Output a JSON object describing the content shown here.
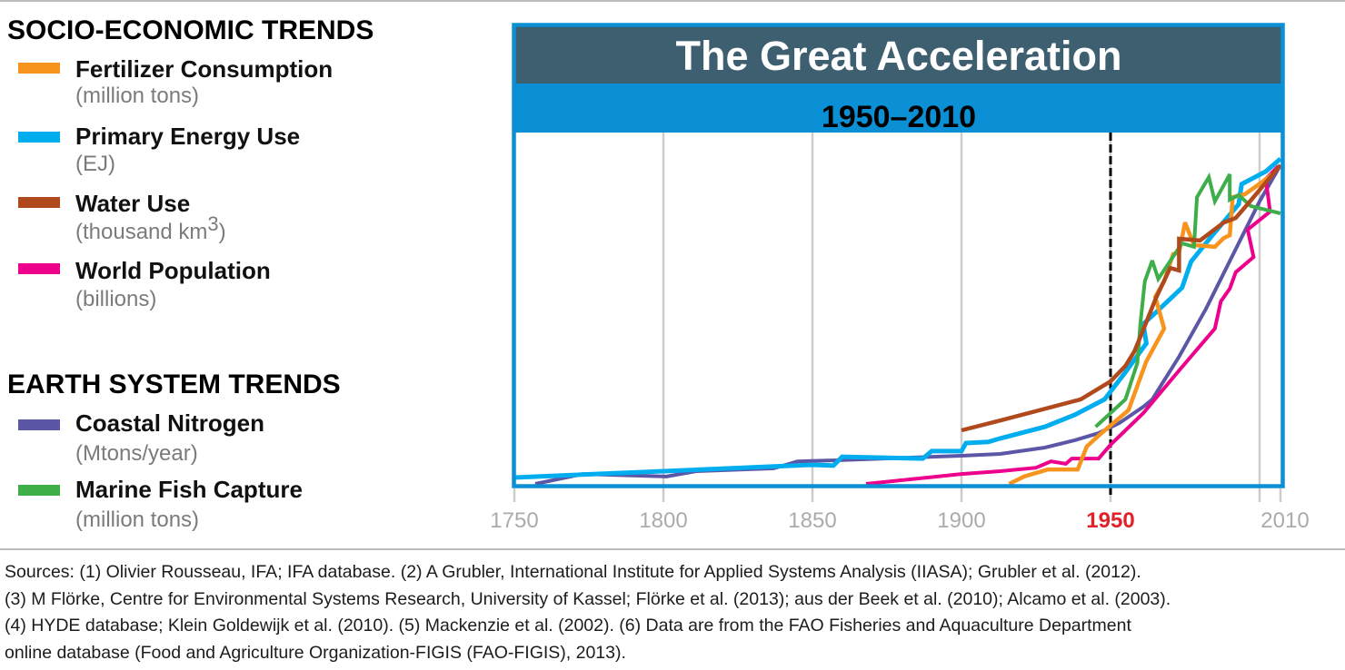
{
  "chart_data": {
    "type": "line",
    "title": "The Great Acceleration",
    "subtitle": "1950–2010",
    "xlabel": "",
    "ylabel": "",
    "xlim": [
      1750,
      2010
    ],
    "ylim": [
      0,
      100
    ],
    "grid": "vertical",
    "gridlines_x": [
      1800,
      1850,
      1900,
      1950,
      2000
    ],
    "x_ticks": [
      {
        "value": 1750,
        "label": "1750"
      },
      {
        "value": 1800,
        "label": "1800"
      },
      {
        "value": 1850,
        "label": "1850"
      },
      {
        "value": 1900,
        "label": "1900"
      },
      {
        "value": 1950,
        "label": "1950",
        "highlight": true
      },
      {
        "value": 2010,
        "label": "2010"
      }
    ],
    "reference_line": {
      "x": 1950,
      "style": "dashed"
    },
    "legend_placement": "left",
    "legend_groups": [
      {
        "title": "SOCIO-ECONOMIC TRENDS"
      },
      {
        "title": "EARTH SYSTEM TRENDS"
      }
    ],
    "series": [
      {
        "name": "Fertilizer Consumption",
        "unit": "(million tons)",
        "group": 0,
        "color": "#f7941d",
        "points": [
          [
            1916,
            0
          ],
          [
            1921,
            2.1
          ],
          [
            1929,
            4.1
          ],
          [
            1939,
            4.1
          ],
          [
            1942,
            10.6
          ],
          [
            1946,
            13.7
          ],
          [
            1956,
            20.9
          ],
          [
            1962,
            34.8
          ],
          [
            1968,
            44.1
          ],
          [
            1965,
            53.1
          ],
          [
            1968,
            57.5
          ],
          [
            1971,
            65.2
          ],
          [
            1973,
            65.7
          ],
          [
            1975,
            74.2
          ],
          [
            1978,
            67.8
          ],
          [
            1985,
            67.3
          ],
          [
            1988,
            69.8
          ],
          [
            1990,
            70.6
          ],
          [
            1991,
            81.4
          ],
          [
            1995,
            82.2
          ],
          [
            2001,
            85.6
          ],
          [
            2006,
            87.9
          ]
        ]
      },
      {
        "name": "Primary Energy Use",
        "unit": "(EJ)",
        "group": 0,
        "color": "#00aeef",
        "points": [
          [
            1750,
            1.8
          ],
          [
            1850,
            5.4
          ],
          [
            1857,
            5.2
          ],
          [
            1860,
            7.7
          ],
          [
            1887,
            7.2
          ],
          [
            1890,
            9.3
          ],
          [
            1900,
            9.3
          ],
          [
            1901.5,
            11.6
          ],
          [
            1909,
            11.9
          ],
          [
            1913,
            12.9
          ],
          [
            1928,
            16.2
          ],
          [
            1938,
            19.6
          ],
          [
            1948,
            24.0
          ],
          [
            1955,
            31.7
          ],
          [
            1962,
            39.9
          ],
          [
            1961,
            45.4
          ],
          [
            1965,
            48.5
          ],
          [
            1974,
            55.7
          ],
          [
            1977,
            63.1
          ],
          [
            1984,
            70.4
          ],
          [
            1993,
            79.4
          ],
          [
            1994,
            85.1
          ],
          [
            2003,
            88.7
          ],
          [
            2010,
            92.3
          ]
        ]
      },
      {
        "name": "Water Use",
        "unit_parts": {
          "base": "(thousand km",
          "sup": "3",
          "close": ")"
        },
        "group": 0,
        "color": "#b04a1c",
        "points": [
          [
            1900,
            15.2
          ],
          [
            1913,
            18.0
          ],
          [
            1940,
            24.0
          ],
          [
            1950,
            29.1
          ],
          [
            1955,
            33.5
          ],
          [
            1958,
            37.6
          ],
          [
            1961,
            43.8
          ],
          [
            1965,
            52.3
          ],
          [
            1970,
            61.3
          ],
          [
            1973,
            60.6
          ],
          [
            1973,
            69.6
          ],
          [
            1980,
            69.1
          ],
          [
            1988,
            74.2
          ],
          [
            1992,
            75.5
          ],
          [
            1996,
            79.4
          ],
          [
            2010,
            90.5
          ]
        ]
      },
      {
        "name": "World Population",
        "unit": "(billions)",
        "group": 0,
        "color": "#ec008c",
        "points": [
          [
            1868,
            0
          ],
          [
            1900,
            2.8
          ],
          [
            1913,
            3.6
          ],
          [
            1925,
            4.6
          ],
          [
            1930,
            6.4
          ],
          [
            1935,
            5.7
          ],
          [
            1937,
            7.2
          ],
          [
            1946,
            7.2
          ],
          [
            1950,
            11.1
          ],
          [
            1961,
            20.1
          ],
          [
            1973,
            32.2
          ],
          [
            1985,
            44.1
          ],
          [
            1987,
            51.8
          ],
          [
            1990,
            55.4
          ],
          [
            1992,
            60.1
          ],
          [
            1998,
            64.4
          ],
          [
            1996,
            72.2
          ],
          [
            2005,
            77.3
          ],
          [
            2003,
            86.6
          ],
          [
            2009,
            90.2
          ]
        ]
      },
      {
        "name": "Coastal Nitrogen",
        "unit": "(Mtons/year)",
        "group": 1,
        "color": "#5b57a6",
        "points": [
          [
            1757,
            0
          ],
          [
            1773,
            2.8
          ],
          [
            1801,
            2.1
          ],
          [
            1811,
            3.6
          ],
          [
            1837,
            4.4
          ],
          [
            1845,
            6.4
          ],
          [
            1858,
            6.7
          ],
          [
            1900,
            8.0
          ],
          [
            1913,
            8.5
          ],
          [
            1928,
            10.3
          ],
          [
            1938,
            12.4
          ],
          [
            1946,
            14.4
          ],
          [
            1953,
            17.3
          ],
          [
            1961,
            21.9
          ],
          [
            1964,
            24.0
          ],
          [
            1973,
            36.1
          ],
          [
            1982,
            49.7
          ],
          [
            2000,
            80.2
          ],
          [
            2010,
            90.5
          ]
        ]
      },
      {
        "name": "Marine Fish Capture",
        "unit": "(million tons)",
        "group": 1,
        "color": "#3dae49",
        "points": [
          [
            1945,
            16.2
          ],
          [
            1950,
            20.1
          ],
          [
            1955,
            24.0
          ],
          [
            1959,
            34.3
          ],
          [
            1960,
            45.4
          ],
          [
            1961.5,
            57.5
          ],
          [
            1964,
            63.4
          ],
          [
            1966,
            58.2
          ],
          [
            1974,
            68.3
          ],
          [
            1978,
            67.3
          ],
          [
            1979,
            81.4
          ],
          [
            1983,
            87.1
          ],
          [
            1985,
            80.2
          ],
          [
            1990,
            87.9
          ],
          [
            1990,
            80.7
          ],
          [
            1993,
            82.0
          ],
          [
            1997,
            78.9
          ],
          [
            2010,
            76.8
          ]
        ]
      }
    ]
  },
  "colors": {
    "frame": "#0b8fd5",
    "title_band": "#3d5f6f",
    "subtitle_band": "#0b8fd5",
    "title_text": "#ffffff",
    "subtitle_text": "#000000",
    "grid": "#cccccc",
    "tick_label": "#ababab",
    "highlight_tick": "#e3202a",
    "reference_line": "#000000"
  },
  "footer": {
    "lines": [
      "Sources: (1) Olivier Rousseau, IFA; IFA database. (2) A Grubler, International Institute for Applied Systems Analysis (IIASA); Grubler et al. (2012).",
      "(3) M Flörke, Centre for Environmental Systems Research, University of Kassel; Flörke et al. (2013); aus der Beek et al. (2010); Alcamo et al. (2003).",
      "(4) HYDE database; Klein Goldewijk et al. (2010). (5) Mackenzie et al. (2002).  (6) Data are from the FAO Fisheries and Aquaculture Department",
      "online database (Food and Agriculture Organization-FIGIS (FAO-FIGIS), 2013)."
    ]
  }
}
